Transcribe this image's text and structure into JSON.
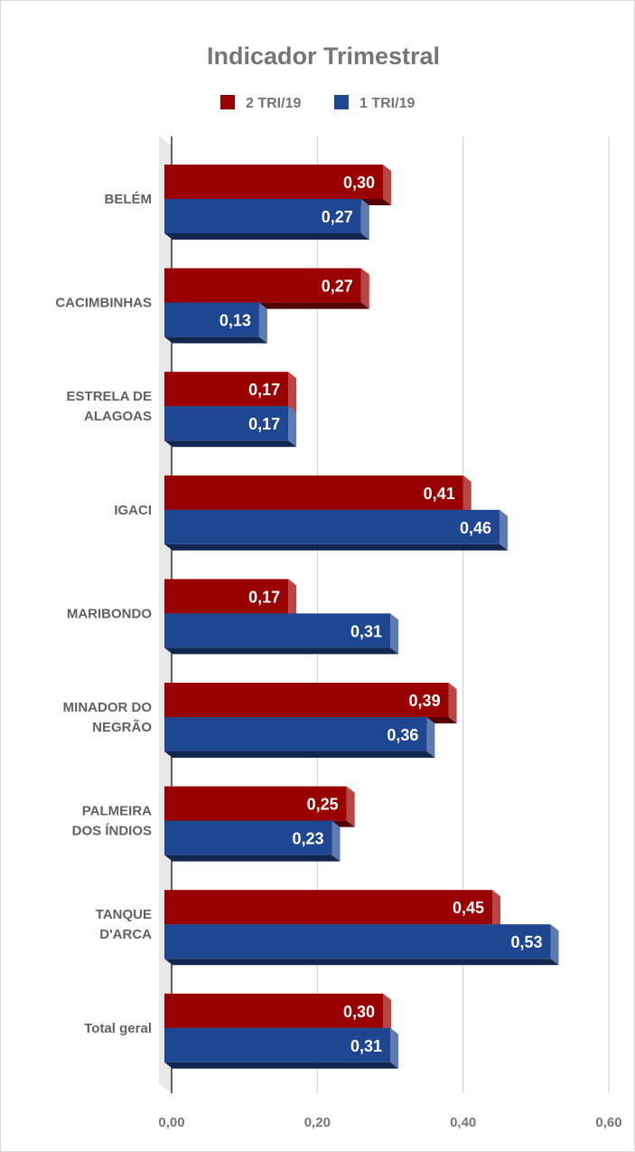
{
  "chart_data": {
    "type": "bar",
    "orientation": "horizontal",
    "title": "Indicador Trimestral",
    "categories": [
      [
        "BELÉM"
      ],
      [
        "CACIMBINHAS"
      ],
      [
        "ESTRELA DE",
        "ALAGOAS"
      ],
      [
        "IGACI"
      ],
      [
        "MARIBONDO"
      ],
      [
        "MINADOR DO",
        "NEGRÃO"
      ],
      [
        "PALMEIRA",
        "DOS ÍNDIOS"
      ],
      [
        "TANQUE",
        "D'ARCA"
      ],
      [
        "Total geral"
      ]
    ],
    "series": [
      {
        "name": "2 TRI/19",
        "color": "#990000",
        "values": [
          0.3,
          0.27,
          0.17,
          0.41,
          0.17,
          0.39,
          0.25,
          0.45,
          0.3
        ],
        "labels": [
          "0,30",
          "0,27",
          "0,17",
          "0,41",
          "0,17",
          "0,39",
          "0,25",
          "0,45",
          "0,30"
        ]
      },
      {
        "name": "1 TRI/19",
        "color": "#1f4690",
        "values": [
          0.27,
          0.13,
          0.17,
          0.46,
          0.31,
          0.36,
          0.23,
          0.53,
          0.31
        ],
        "labels": [
          "0,27",
          "0,13",
          "0,17",
          "0,46",
          "0,31",
          "0,36",
          "0,23",
          "0,53",
          "0,31"
        ]
      }
    ],
    "xlim": [
      0,
      0.6
    ],
    "xticks": [
      0,
      0.2,
      0.4,
      0.6
    ],
    "xtick_labels": [
      "0,00",
      "0,20",
      "0,40",
      "0,60"
    ],
    "xlabel": "",
    "ylabel": "",
    "grid": true,
    "legend_position": "top",
    "style": "3d"
  }
}
